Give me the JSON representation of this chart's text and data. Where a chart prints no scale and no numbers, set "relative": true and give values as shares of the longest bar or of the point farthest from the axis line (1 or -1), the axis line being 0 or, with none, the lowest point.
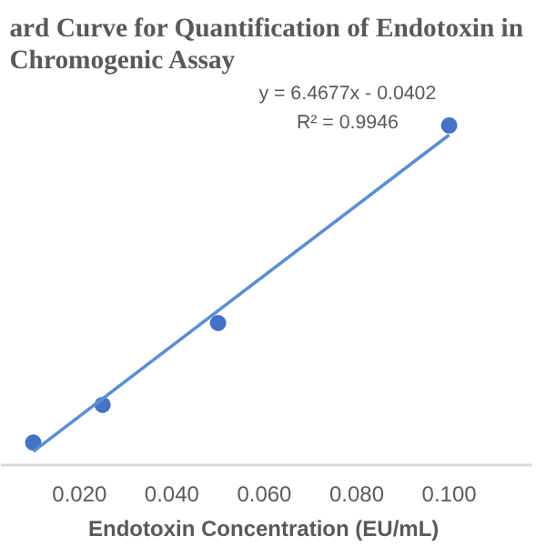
{
  "chart_data": {
    "type": "scatter",
    "title": "ard Curve for Quantification of Endotoxin in\nChromogenic Assay",
    "xlabel": "Endotoxin Concentration  (EU/mL)",
    "x": [
      0.01,
      0.025,
      0.05,
      0.1
    ],
    "relative": true,
    "series": [
      {
        "color": "#4472c4",
        "values": [
          0.066,
          0.177,
          0.418,
          1.0
        ]
      },
      {
        "type": "line",
        "marker": "none",
        "color": "#5b8fd0",
        "x": [
          0.01,
          0.1
        ],
        "values": [
          0.04,
          0.972
        ]
      }
    ],
    "annotations": [
      "y = 6.4677x - 0.0402",
      "R² = 0.9946"
    ],
    "xlim": [
      0.003,
      0.118
    ],
    "xticks": [
      {
        "value": 0.02,
        "label": "0.020"
      },
      {
        "value": 0.04,
        "label": "0.040"
      },
      {
        "value": 0.06,
        "label": "0.060"
      },
      {
        "value": 0.08,
        "label": "0.080"
      },
      {
        "value": 0.1,
        "label": "0.100"
      }
    ],
    "marker": "circle",
    "line_style": "solid",
    "grid": false
  }
}
